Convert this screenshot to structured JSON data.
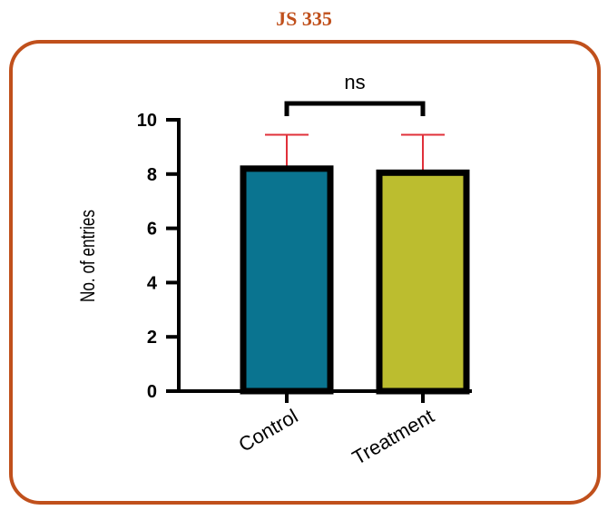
{
  "header": {
    "title": "JS 335"
  },
  "chart_data": {
    "type": "bar",
    "categories": [
      "Control",
      "Treatment"
    ],
    "values": [
      8.2,
      8.05
    ],
    "errors": [
      1.25,
      1.4
    ],
    "colors": [
      "#0a7490",
      "#bcbd2f"
    ],
    "error_color": "#e0303a",
    "ylabel": "No. of entries",
    "xlabel": "",
    "title": "",
    "ylim": [
      0,
      10
    ],
    "yticks": [
      0,
      2,
      4,
      6,
      8,
      10
    ],
    "significance": {
      "label": "ns",
      "between": [
        0,
        1
      ]
    },
    "grid": false,
    "legend": "none"
  },
  "colors": {
    "title": "#c0501c",
    "panel_border": "#c0501c"
  }
}
